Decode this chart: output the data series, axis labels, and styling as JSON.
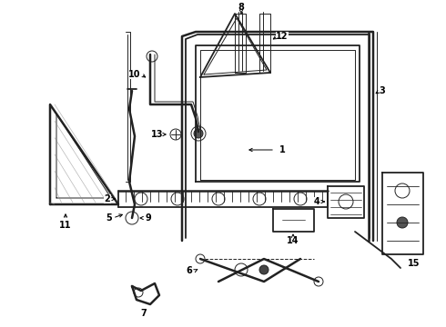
{
  "bg_color": "#ffffff",
  "line_color": "#222222",
  "label_color": "#000000",
  "figsize": [
    4.9,
    3.6
  ],
  "dpi": 100,
  "lw_main": 1.3,
  "lw_thin": 0.7,
  "lw_thick": 1.8,
  "font_size": 7.0
}
